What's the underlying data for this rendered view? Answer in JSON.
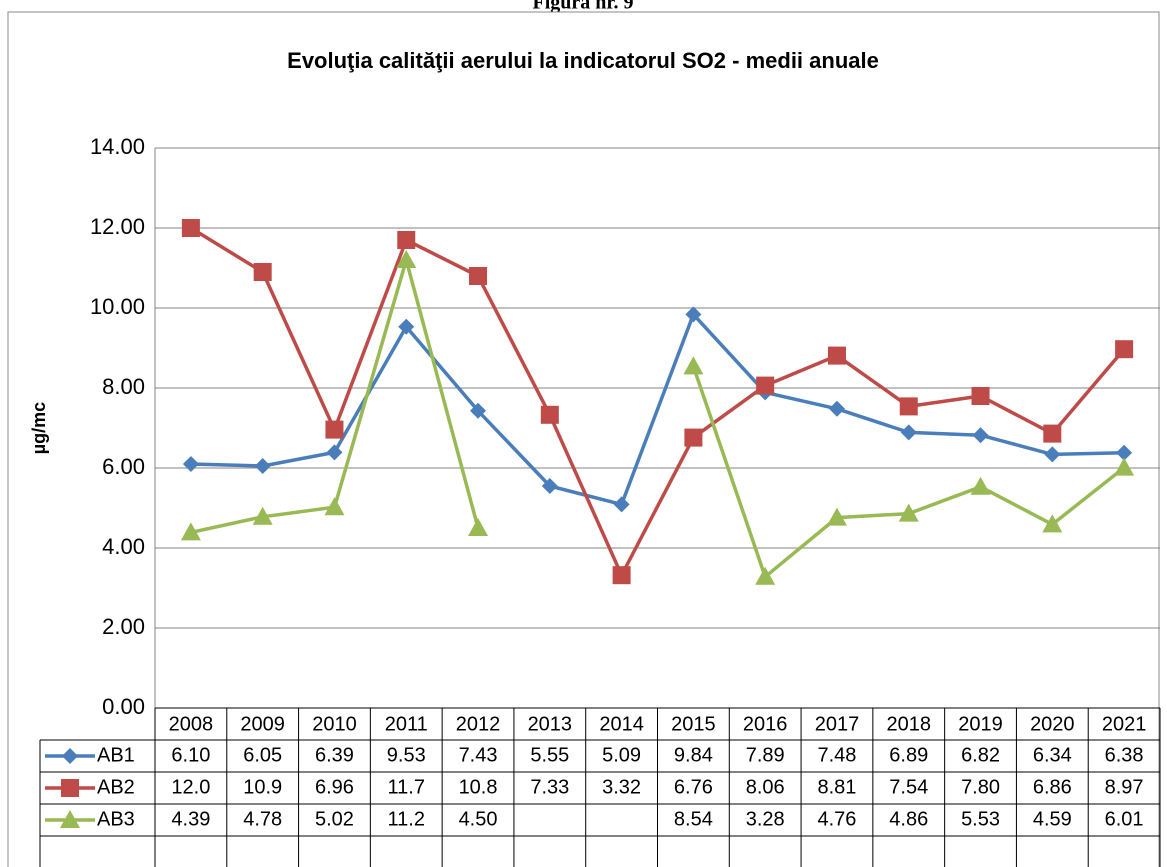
{
  "figure_label": "Figura nr. 9",
  "chart_data": {
    "type": "line",
    "title": "Evoluţia calităţii aerului la indicatorul SO2 - medii anuale",
    "y_label": "µg/mc",
    "categories": [
      "2008",
      "2009",
      "2010",
      "2011",
      "2012",
      "2013",
      "2014",
      "2015",
      "2016",
      "2017",
      "2018",
      "2019",
      "2020",
      "2021"
    ],
    "ylim": [
      0,
      14
    ],
    "yticks": [
      {
        "value": 0,
        "label": "0.00"
      },
      {
        "value": 2,
        "label": "2.00"
      },
      {
        "value": 4,
        "label": "4.00"
      },
      {
        "value": 6,
        "label": "6.00"
      },
      {
        "value": 8,
        "label": "8.00"
      },
      {
        "value": 10,
        "label": "10.00"
      },
      {
        "value": 12,
        "label": "12.00"
      },
      {
        "value": 14,
        "label": "14.00"
      }
    ],
    "grid": true,
    "series": [
      {
        "name": "AB1",
        "color": "#4a7ebb",
        "marker": "diamond",
        "values": [
          6.1,
          6.05,
          6.39,
          9.53,
          7.43,
          5.55,
          5.09,
          9.84,
          7.89,
          7.48,
          6.89,
          6.82,
          6.34,
          6.38
        ],
        "value_labels": [
          "6.10",
          "6.05",
          "6.39",
          "9.53",
          "7.43",
          "5.55",
          "5.09",
          "9.84",
          "7.89",
          "7.48",
          "6.89",
          "6.82",
          "6.34",
          "6.38"
        ]
      },
      {
        "name": "AB2",
        "color": "#be4b48",
        "marker": "square",
        "values": [
          12.0,
          10.9,
          6.96,
          11.7,
          10.8,
          7.33,
          3.32,
          6.76,
          8.06,
          8.81,
          7.54,
          7.8,
          6.86,
          8.97
        ],
        "value_labels": [
          "12.0",
          "10.9",
          "6.96",
          "11.7",
          "10.8",
          "7.33",
          "3.32",
          "6.76",
          "8.06",
          "8.81",
          "7.54",
          "7.80",
          "6.86",
          "8.97"
        ]
      },
      {
        "name": "AB3",
        "color": "#98b954",
        "marker": "triangle",
        "values": [
          4.39,
          4.78,
          5.02,
          11.2,
          4.5,
          null,
          null,
          8.54,
          3.28,
          4.76,
          4.86,
          5.53,
          4.59,
          6.01
        ],
        "value_labels": [
          "4.39",
          "4.78",
          "5.02",
          "11.2",
          "4.50",
          null,
          null,
          "8.54",
          "3.28",
          "4.76",
          "4.86",
          "5.53",
          "4.59",
          "6.01"
        ]
      }
    ]
  }
}
